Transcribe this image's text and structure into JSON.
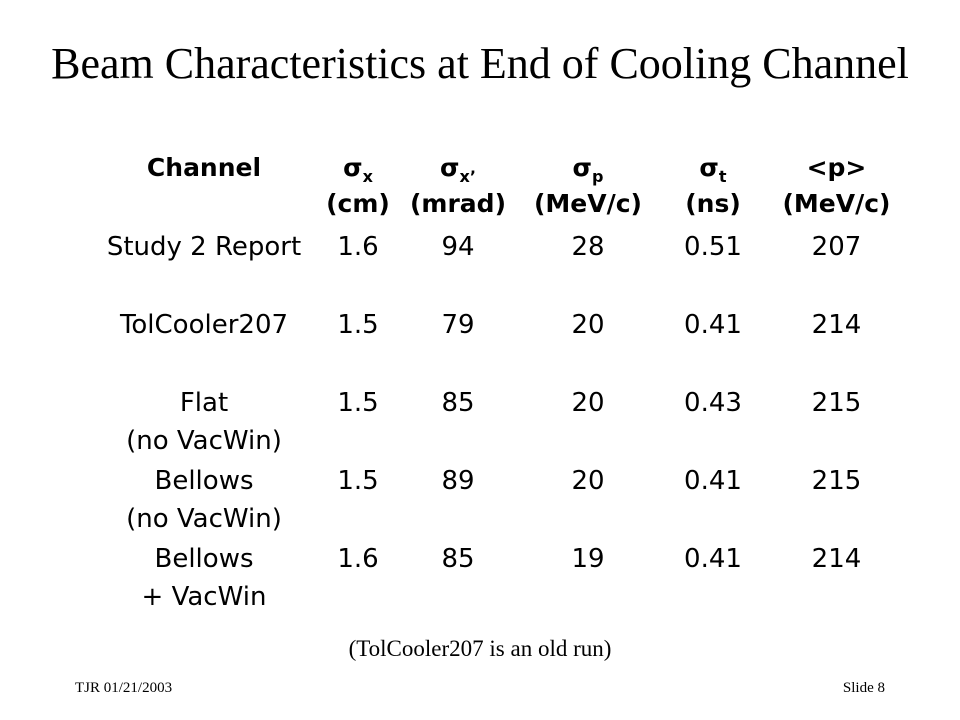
{
  "title": "Beam Characteristics at End of Cooling Channel",
  "header": {
    "channel": "Channel",
    "sx_sym": "σ",
    "sx_sub": "x",
    "sx_unit": "(cm)",
    "sxp_sym": "σ",
    "sxp_sub": "x’",
    "sxp_unit": "(mrad)",
    "sp_sym": "σ",
    "sp_sub": "p",
    "sp_unit": "(MeV/c)",
    "st_sym": "σ",
    "st_sub": "t",
    "st_unit": "(ns)",
    "p_sym": "<p>",
    "p_unit": "(MeV/c)"
  },
  "rows": [
    {
      "l1": "Study 2 Report",
      "l2": "",
      "sx": "1.6",
      "sxp": "94",
      "sp": "28",
      "st": "0.51",
      "p": "207"
    },
    {
      "l1": "TolCooler207",
      "l2": "",
      "sx": "1.5",
      "sxp": "79",
      "sp": "20",
      "st": "0.41",
      "p": "214"
    },
    {
      "l1": "Flat",
      "l2": "(no VacWin)",
      "sx": "1.5",
      "sxp": "85",
      "sp": "20",
      "st": "0.43",
      "p": "215"
    },
    {
      "l1": "Bellows",
      "l2": "(no VacWin)",
      "sx": "1.5",
      "sxp": "89",
      "sp": "20",
      "st": "0.41",
      "p": "215"
    },
    {
      "l1": "Bellows",
      "l2": "+ VacWin",
      "sx": "1.6",
      "sxp": "85",
      "sp": "19",
      "st": "0.41",
      "p": "214"
    }
  ],
  "note": "(TolCooler207 is an old run)",
  "footer": {
    "left": "TJR  01/21/2003",
    "right": "Slide 8"
  }
}
